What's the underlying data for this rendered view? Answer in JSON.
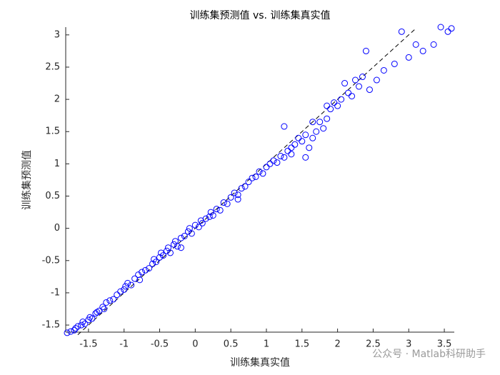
{
  "chart_data": {
    "type": "scatter",
    "title": "训练集预测值 vs. 训练集真实值",
    "xlabel": "训练集真实值",
    "ylabel": "训练集预测值",
    "watermark": "公众号 · Matlab科研助手",
    "color": "#0000ff",
    "xlim": [
      -1.82,
      3.64
    ],
    "ylim": [
      -1.61,
      3.12
    ],
    "xticks": [
      -1.5,
      -1,
      -0.5,
      0,
      0.5,
      1,
      1.5,
      2,
      2.5,
      3,
      3.5
    ],
    "yticks": [
      -1.5,
      -1,
      -0.5,
      0,
      0.5,
      1,
      1.5,
      2,
      2.5,
      3
    ],
    "diagonal": [
      -1.65,
      3.1
    ],
    "x": [
      -1.8,
      -1.75,
      -1.7,
      -1.68,
      -1.65,
      -1.6,
      -1.58,
      -1.55,
      -1.5,
      -1.48,
      -1.45,
      -1.4,
      -1.38,
      -1.35,
      -1.3,
      -1.28,
      -1.25,
      -1.2,
      -1.15,
      -1.1,
      -1.05,
      -1,
      -0.98,
      -0.95,
      -0.9,
      -0.85,
      -0.8,
      -0.78,
      -0.75,
      -0.7,
      -0.65,
      -0.6,
      -0.58,
      -0.55,
      -0.5,
      -0.48,
      -0.45,
      -0.4,
      -0.38,
      -0.35,
      -0.3,
      -0.28,
      -0.25,
      -0.2,
      -0.15,
      -0.1,
      -0.08,
      -0.05,
      0,
      0.05,
      0.08,
      0.1,
      0.15,
      0.2,
      0.22,
      0.25,
      0.3,
      0.35,
      0.4,
      0.45,
      0.5,
      0.55,
      0.6,
      0.65,
      0.7,
      0.75,
      0.8,
      0.85,
      0.9,
      0.95,
      1,
      1.05,
      1.1,
      1.15,
      1.2,
      1.25,
      1.3,
      1.35,
      1.4,
      1.45,
      1.5,
      1.55,
      1.6,
      1.65,
      1.7,
      1.75,
      1.8,
      1.85,
      1.9,
      1.95,
      2,
      2.05,
      2.1,
      2.15,
      2.2,
      2.3,
      2.35,
      2.4,
      2.45,
      2.55,
      2.65,
      2.8,
      2.9,
      3,
      3.1,
      3.2,
      3.35,
      3.45,
      3.55,
      3.6,
      1.25,
      1.65,
      1.35,
      0.6,
      -0.2,
      2.25,
      1.85,
      1.55
    ],
    "y": [
      -1.62,
      -1.6,
      -1.58,
      -1.55,
      -1.52,
      -1.5,
      -1.45,
      -1.48,
      -1.42,
      -1.38,
      -1.4,
      -1.32,
      -1.3,
      -1.28,
      -1.22,
      -1.25,
      -1.15,
      -1.12,
      -1.1,
      -1.03,
      -0.98,
      -0.95,
      -0.9,
      -0.85,
      -0.88,
      -0.78,
      -0.72,
      -0.8,
      -0.68,
      -0.65,
      -0.62,
      -0.55,
      -0.48,
      -0.52,
      -0.45,
      -0.38,
      -0.42,
      -0.35,
      -0.3,
      -0.38,
      -0.25,
      -0.2,
      -0.28,
      -0.15,
      -0.12,
      -0.05,
      0,
      -0.08,
      0.05,
      0.02,
      0.12,
      0.08,
      0.15,
      0.18,
      0.25,
      0.2,
      0.3,
      0.28,
      0.4,
      0.38,
      0.48,
      0.55,
      0.52,
      0.62,
      0.65,
      0.72,
      0.78,
      0.8,
      0.88,
      0.85,
      0.95,
      1,
      1.05,
      1.02,
      1.12,
      1.1,
      1.2,
      1.25,
      1.3,
      1.4,
      1.35,
      1.45,
      1.25,
      1.4,
      1.5,
      1.65,
      1.55,
      1.7,
      1.85,
      1.95,
      1.9,
      2,
      2.25,
      2.1,
      2.05,
      2.2,
      2.35,
      2.75,
      2.15,
      2.3,
      2.45,
      2.55,
      3.05,
      2.65,
      2.85,
      2.75,
      2.85,
      3.12,
      3.05,
      3.1,
      1.58,
      1.65,
      1.15,
      0.45,
      -0.3,
      2.3,
      1.9,
      1.1
    ]
  }
}
